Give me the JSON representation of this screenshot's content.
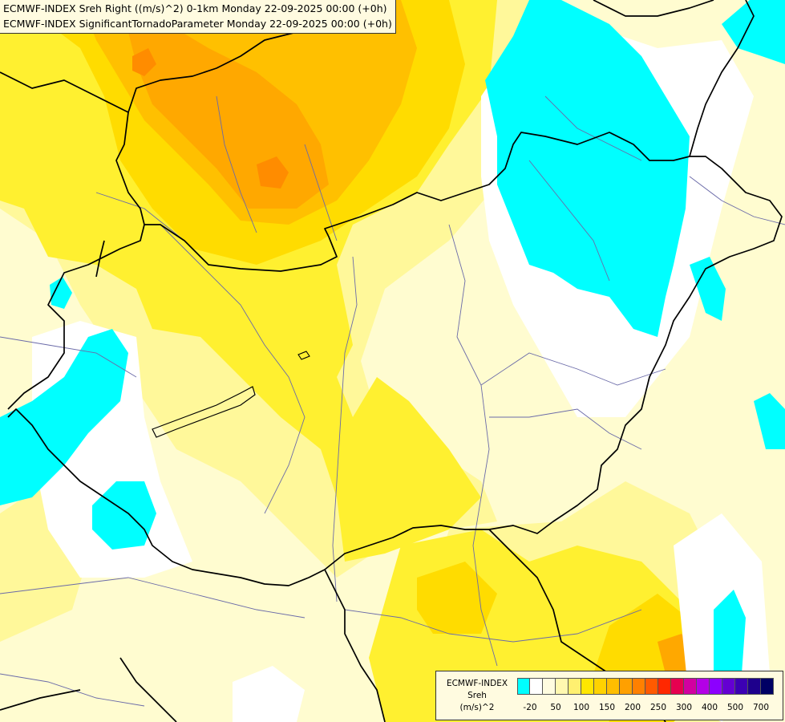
{
  "titles": {
    "line1": "ECMWF-INDEX Sreh Right ((m/s)^2) 0-1km Monday 22-09-2025 00:00 (+0h)",
    "line2": "ECMWF-INDEX SignificantTornadoParameter Monday 22-09-2025 00:00 (+0h)"
  },
  "legend": {
    "model": "ECMWF-INDEX",
    "parameter": "Sreh",
    "unit": "(m/s)^2",
    "colors": [
      "#00ffff",
      "#ffffff",
      "#fffce0",
      "#fff8b0",
      "#fff070",
      "#ffe600",
      "#ffd200",
      "#ffbe00",
      "#ffa000",
      "#ff8000",
      "#ff5a00",
      "#ff2800",
      "#e60050",
      "#d200a0",
      "#b400e6",
      "#8c00ff",
      "#6400d2",
      "#3c00b4",
      "#1e008c",
      "#000064"
    ],
    "tick_labels": [
      "-20",
      "50",
      "100",
      "150",
      "200",
      "250",
      "300",
      "400",
      "500",
      "700"
    ]
  },
  "map_colors": {
    "pale": "#fffcd0",
    "light_yellow": "#fff89a",
    "yellow": "#fff030",
    "gold": "#ffdc00",
    "amber": "#ffc000",
    "orange": "#ffa800",
    "deep_orange": "#ff8c00",
    "cyan": "#00ffff",
    "white": "#ffffff",
    "border": "#000000",
    "river": "#6a6aa8"
  }
}
